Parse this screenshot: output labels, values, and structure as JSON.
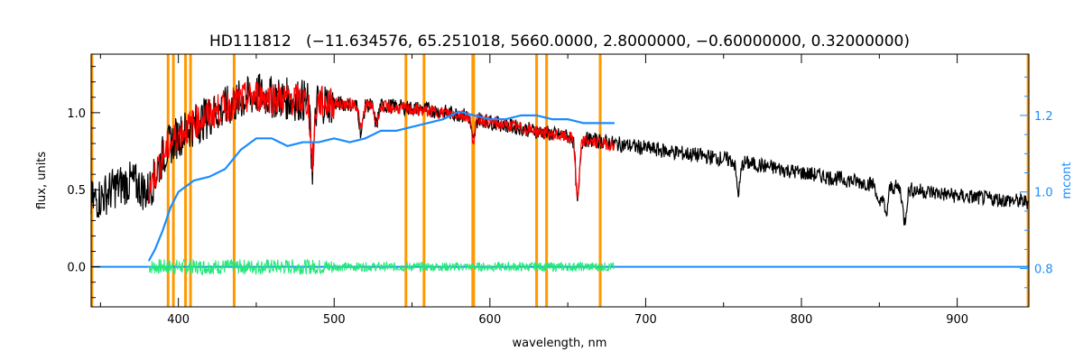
{
  "chart_data": {
    "type": "line",
    "title": "HD111812   (−11.634576, 65.251018, 5660.0000, 2.8000000, −0.60000000, 0.32000000)",
    "xlabel": "wavelength, nm",
    "ylabel": "flux, units",
    "y2label": "mcont",
    "xlim": [
      344,
      946
    ],
    "ylim": [
      -0.26,
      1.38
    ],
    "y2lim": [
      0.7,
      1.36
    ],
    "x_ticks": [
      400,
      500,
      600,
      700,
      800,
      900
    ],
    "y_ticks": [
      0.0,
      0.5,
      1.0
    ],
    "y_tick_labels": [
      "0.0",
      "0.5",
      "1.0"
    ],
    "y2_ticks": [
      0.8,
      1.0,
      1.2
    ],
    "y2_tick_labels": [
      "0.8",
      "1.0",
      "1.2"
    ],
    "grid": false,
    "vertical_lines": [
      344.5,
      393.4,
      396.8,
      404.6,
      407.8,
      435.8,
      546.1,
      557.7,
      588.99,
      589.59,
      630.0,
      636.4,
      670.8,
      945.5
    ],
    "series": [
      {
        "name": "",
        "kind": "observed flux",
        "color": "#000000",
        "x": [
          344,
          350,
          360,
          370,
          375,
          380,
          385,
          390,
          395,
          400,
          410,
          420,
          430,
          440,
          450,
          460,
          470,
          480,
          490,
          500,
          520,
          540,
          560,
          580,
          590,
          600,
          620,
          640,
          660,
          680,
          700,
          750,
          800,
          850,
          900,
          946
        ],
        "y": [
          0.42,
          0.45,
          0.52,
          0.55,
          0.52,
          0.48,
          0.58,
          0.72,
          0.8,
          0.85,
          0.92,
          0.98,
          1.03,
          1.08,
          1.12,
          1.1,
          1.09,
          1.08,
          1.07,
          1.06,
          1.05,
          1.04,
          1.02,
          0.99,
          0.97,
          0.94,
          0.9,
          0.86,
          0.83,
          0.8,
          0.77,
          0.7,
          0.61,
          0.53,
          0.46,
          0.42
        ]
      },
      {
        "name": "",
        "kind": "model fit",
        "color": "#ff0000",
        "x": [
          381,
          385,
          390,
          395,
          400,
          410,
          420,
          430,
          440,
          450,
          460,
          470,
          480,
          490,
          500,
          520,
          540,
          560,
          580,
          590,
          600,
          620,
          640,
          660,
          680
        ],
        "y": [
          0.5,
          0.6,
          0.72,
          0.8,
          0.86,
          0.93,
          0.99,
          1.04,
          1.08,
          1.11,
          1.1,
          1.09,
          1.08,
          1.07,
          1.06,
          1.05,
          1.03,
          1.01,
          0.99,
          0.97,
          0.94,
          0.9,
          0.86,
          0.82,
          0.79
        ]
      },
      {
        "name": "",
        "kind": "mcont (right axis)",
        "color": "#1a8cff",
        "axis": "right",
        "x": [
          381,
          385,
          390,
          395,
          400,
          410,
          420,
          430,
          440,
          450,
          460,
          470,
          480,
          490,
          500,
          510,
          520,
          530,
          540,
          550,
          560,
          570,
          580,
          590,
          600,
          610,
          620,
          630,
          640,
          650,
          660,
          670,
          680
        ],
        "y": [
          0.82,
          0.85,
          0.9,
          0.96,
          1.0,
          1.03,
          1.04,
          1.06,
          1.11,
          1.14,
          1.14,
          1.12,
          1.13,
          1.13,
          1.14,
          1.13,
          1.14,
          1.16,
          1.16,
          1.17,
          1.18,
          1.19,
          1.21,
          1.2,
          1.19,
          1.19,
          1.2,
          1.2,
          1.19,
          1.19,
          1.18,
          1.18,
          1.18
        ]
      },
      {
        "name": "",
        "kind": "residuals",
        "color": "#22e87a",
        "x": [
          381,
          680
        ],
        "y": [
          0.0,
          0.0
        ],
        "spread": 0.05
      },
      {
        "name": "",
        "kind": "zero baseline",
        "color": "#1a8cff",
        "x": [
          344,
          380,
          680,
          946
        ],
        "y": [
          0.0,
          0.0,
          0.0,
          0.0
        ]
      }
    ],
    "absorption_lines": [
      {
        "x": 486.1,
        "depth": 0.42
      },
      {
        "x": 517.3,
        "depth": 0.18
      },
      {
        "x": 527.0,
        "depth": 0.12
      },
      {
        "x": 589.3,
        "depth": 0.16
      },
      {
        "x": 656.3,
        "depth": 0.42
      },
      {
        "x": 759.5,
        "depth": 0.2
      },
      {
        "x": 849.8,
        "depth": 0.15
      },
      {
        "x": 854.2,
        "depth": 0.2
      },
      {
        "x": 866.2,
        "depth": 0.21
      }
    ]
  }
}
